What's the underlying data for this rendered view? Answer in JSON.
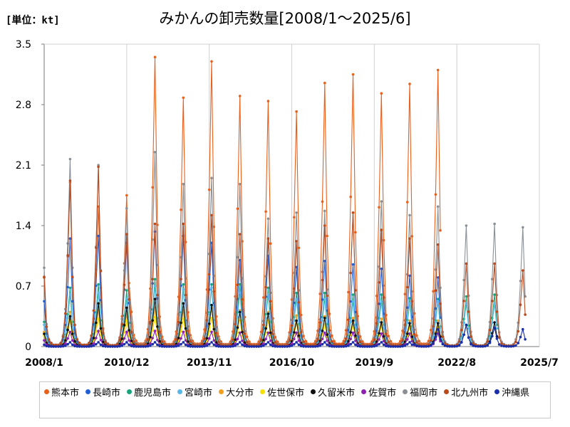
{
  "unit_label": "[単位：kt]",
  "title": "みかんの卸売数量[2008/1～2025/6]",
  "chart_data": {
    "type": "line",
    "title": "みかんの卸売数量[2008/1～2025/6]",
    "ylabel": "[単位：kt]",
    "xlabel": "",
    "ylim": [
      0,
      3.5
    ],
    "y_ticks": [
      "0",
      "0.7",
      "1.4",
      "2.1",
      "2.8",
      "3.5"
    ],
    "x_tick_labels": [
      "2008/1",
      "2010/12",
      "2013/11",
      "2016/10",
      "2019/9",
      "2022/8",
      "2025/7"
    ],
    "x_range": [
      "2008/1",
      "2025/7"
    ],
    "grid": "vertical",
    "legend_position": "bottom",
    "series_peaks_note": "values below are approximate seasonal peaks (December) per year",
    "peak_years": [
      2008,
      2009,
      2010,
      2011,
      2012,
      2013,
      2014,
      2015,
      2016,
      2017,
      2018,
      2019,
      2020,
      2021,
      2022,
      2023,
      2024
    ],
    "series": [
      {
        "name": "熊本市",
        "color": "#e8601c",
        "peaks": [
          1.9,
          1.62,
          1.75,
          3.35,
          2.88,
          3.3,
          2.9,
          2.84,
          2.72,
          3.05,
          3.15,
          2.93,
          3.04,
          3.2,
          null,
          null,
          null
        ],
        "end_year": 2021
      },
      {
        "name": "長崎市",
        "color": "#1f5fd6",
        "peaks": [
          1.25,
          1.28,
          1.2,
          1.33,
          1.28,
          1.2,
          1.0,
          1.05,
          0.92,
          0.99,
          0.95,
          0.9,
          0.82,
          0.8,
          null,
          null,
          null
        ],
        "end_year": 2021
      },
      {
        "name": "鹿児島市",
        "color": "#19a57c",
        "peaks": [
          0.68,
          0.72,
          0.65,
          0.78,
          0.72,
          0.72,
          0.72,
          0.68,
          0.62,
          0.62,
          0.6,
          0.6,
          0.56,
          0.55,
          0.58,
          0.6,
          null
        ],
        "end_year": 2023
      },
      {
        "name": "宮崎市",
        "color": "#5ab8e8",
        "peaks": [
          0.6,
          0.62,
          0.55,
          0.7,
          0.66,
          0.68,
          0.62,
          0.6,
          0.55,
          0.55,
          0.52,
          0.52,
          0.5,
          0.52,
          0.5,
          0.5,
          null
        ],
        "end_year": 2023
      },
      {
        "name": "大分市",
        "color": "#f0a020",
        "peaks": [
          0.4,
          0.42,
          0.38,
          0.45,
          0.42,
          0.45,
          0.42,
          0.4,
          0.36,
          0.35,
          0.33,
          0.32,
          0.3,
          0.3,
          null,
          null,
          null
        ],
        "end_year": 2021
      },
      {
        "name": "佐世保市",
        "color": "#f5e000",
        "peaks": [
          0.3,
          0.32,
          0.3,
          0.34,
          0.32,
          0.33,
          0.3,
          0.3,
          0.27,
          0.26,
          0.25,
          0.24,
          0.22,
          0.22,
          null,
          null,
          null
        ],
        "end_year": 2021
      },
      {
        "name": "久留米市",
        "color": "#111111",
        "peaks": [
          0.35,
          0.5,
          0.45,
          0.55,
          0.5,
          0.48,
          0.4,
          0.38,
          0.3,
          0.33,
          0.3,
          0.28,
          0.27,
          0.27,
          0.25,
          0.28,
          null
        ],
        "end_year": 2023
      },
      {
        "name": "佐賀市",
        "color": "#8b22b0",
        "peaks": [
          0.17,
          0.18,
          0.17,
          0.18,
          0.17,
          0.17,
          0.16,
          0.16,
          0.16,
          0.16,
          0.16,
          0.15,
          0.15,
          0.15,
          null,
          null,
          null
        ],
        "end_year": 2021
      },
      {
        "name": "福岡市",
        "color": "#8a9096",
        "peaks": [
          2.17,
          2.1,
          1.6,
          2.25,
          1.88,
          1.95,
          1.88,
          1.48,
          1.55,
          1.57,
          1.55,
          1.68,
          1.52,
          1.62,
          1.4,
          1.42,
          1.38
        ],
        "end_year": 2024
      },
      {
        "name": "北九州市",
        "color": "#b84a1e",
        "peaks": [
          1.92,
          2.08,
          1.3,
          1.42,
          1.42,
          1.52,
          1.3,
          1.25,
          1.22,
          1.4,
          1.55,
          1.35,
          1.25,
          1.18,
          0.96,
          0.96,
          0.88
        ],
        "end_year": 2024
      },
      {
        "name": "沖縄県",
        "color": "#1a2fa8",
        "peaks": [
          0.05,
          0.05,
          0.05,
          0.05,
          0.05,
          0.05,
          0.05,
          0.05,
          0.05,
          0.05,
          0.05,
          0.05,
          0.05,
          0.2,
          0.25,
          0.22,
          0.2
        ],
        "end_year": 2024
      }
    ]
  }
}
